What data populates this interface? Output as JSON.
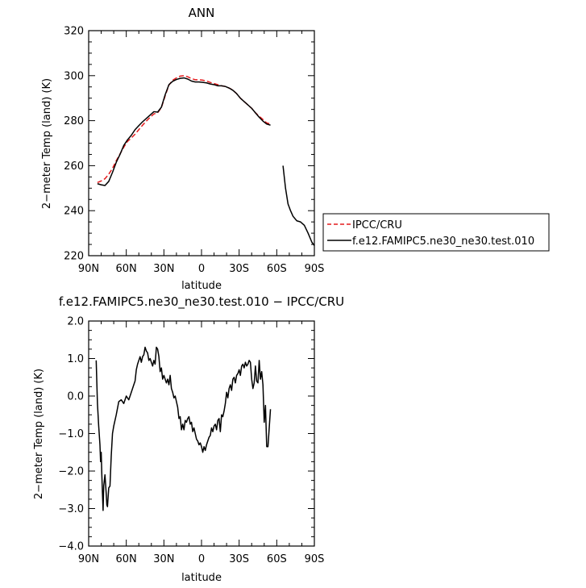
{
  "chart_data": [
    {
      "type": "line",
      "title": "ANN",
      "xlabel": "latitude",
      "ylabel": "2−meter Temp (land) (K)",
      "xlim": [
        90,
        -90
      ],
      "ylim": [
        220,
        320
      ],
      "x_ticks": [
        90,
        60,
        30,
        0,
        -30,
        -60,
        -90
      ],
      "x_tick_labels": [
        "90N",
        "60N",
        "30N",
        "0",
        "30S",
        "60S",
        "90S"
      ],
      "y_ticks": [
        220,
        240,
        260,
        280,
        300,
        320
      ],
      "y_tick_labels": [
        "220",
        "240",
        "260",
        "280",
        "300",
        "320"
      ],
      "legend": {
        "placement": "outside-right",
        "entries": [
          "IPCC/CRU",
          "f.e12.FAMIPC5.ne30_ne30.test.010"
        ]
      },
      "series": [
        {
          "name": "IPCC/CRU",
          "color": "#e41a1c",
          "dash": true,
          "x": [
            83,
            80,
            77,
            74,
            71,
            68,
            65,
            62,
            59,
            56,
            53,
            50,
            47,
            44,
            41,
            38,
            35,
            32,
            29,
            26,
            23,
            20,
            17,
            14,
            11,
            8,
            5,
            2,
            -1,
            -4,
            -7,
            -10,
            -13,
            -16,
            -19,
            -22,
            -25,
            -28,
            -31,
            -34,
            -37,
            -40,
            -43,
            -46,
            -49,
            -52,
            -55
          ],
          "y": [
            252.5,
            253.2,
            254.2,
            256.2,
            258.8,
            262.2,
            265.2,
            268.2,
            270.8,
            272.3,
            274,
            276,
            278,
            279.8,
            281.5,
            283,
            283.5,
            285.8,
            291,
            295.8,
            298,
            299,
            299.8,
            300,
            299.5,
            298.7,
            298.2,
            298.2,
            298,
            297.6,
            297,
            296.5,
            296,
            295.5,
            295.2,
            294.5,
            293.6,
            292,
            290,
            288.5,
            287,
            285.5,
            283.5,
            282,
            280.5,
            279,
            278.5
          ]
        },
        {
          "name": "f.e12.FAMIPC5.ne30_ne30.test.010",
          "color": "#000000",
          "dash": false,
          "x": [
            83,
            80,
            77,
            74,
            71,
            68,
            65,
            62,
            59,
            56,
            53,
            50,
            47,
            44,
            41,
            38,
            35,
            32,
            29,
            26,
            23,
            20,
            17,
            14,
            11,
            8,
            5,
            2,
            -1,
            -4,
            -7,
            -10,
            -13,
            -16,
            -19,
            -22,
            -25,
            -28,
            -31,
            -34,
            -37,
            -40,
            -43,
            -46,
            -49,
            -52,
            -55,
            null,
            -65,
            -67,
            -69,
            -71,
            -73,
            -76,
            -79,
            -82,
            -85,
            -88,
            -90
          ],
          "y": [
            252,
            251.5,
            251.2,
            253,
            257,
            261.5,
            265,
            269,
            271.5,
            273.5,
            276,
            277.8,
            279.5,
            281,
            282.5,
            284,
            283.8,
            286,
            291.5,
            296,
            297.5,
            298.3,
            298.8,
            299,
            298.5,
            297.6,
            297.2,
            297.2,
            297,
            296.8,
            296.3,
            296,
            295.5,
            295.5,
            295.2,
            294.5,
            293.5,
            292,
            290,
            288.5,
            287,
            285.5,
            283.5,
            281.5,
            279.8,
            278.5,
            278,
            null,
            260,
            250,
            243,
            240,
            237.5,
            235.5,
            235,
            233.5,
            230,
            226,
            224.5
          ]
        }
      ]
    },
    {
      "type": "line",
      "title": "f.e12.FAMIPC5.ne30_ne30.test.010 − IPCC/CRU",
      "xlabel": "latitude",
      "ylabel": "2−meter Temp (land) (K)",
      "xlim": [
        90,
        -90
      ],
      "ylim": [
        -4,
        2
      ],
      "x_ticks": [
        90,
        60,
        30,
        0,
        -30,
        -60,
        -90
      ],
      "x_tick_labels": [
        "90N",
        "60N",
        "30N",
        "0",
        "30S",
        "60S",
        "90S"
      ],
      "y_ticks": [
        -4,
        -3,
        -2,
        -1,
        0,
        1,
        2
      ],
      "y_tick_labels": [
        "−4.0",
        "−3.0",
        "−2.0",
        "−1.0",
        "0.0",
        "1.0",
        "2.0"
      ],
      "series": [
        {
          "color": "#000000",
          "dash": false,
          "x": [
            84,
            83,
            82,
            81,
            80.5,
            80,
            79.5,
            79,
            78.5,
            78,
            77,
            76,
            75.5,
            75,
            74,
            73,
            72,
            71,
            70,
            68,
            66,
            64,
            62,
            60,
            58,
            56,
            54,
            53,
            52,
            51,
            50,
            49,
            48,
            47,
            46,
            45,
            44,
            43,
            42,
            41,
            40,
            39,
            38,
            37,
            36,
            35,
            34,
            33,
            32,
            31,
            30,
            29,
            28,
            27,
            26,
            25,
            24,
            23,
            22,
            21,
            20,
            19,
            18,
            17,
            16,
            15,
            14,
            13,
            12,
            11,
            10,
            9,
            8,
            7,
            6,
            5,
            4,
            3,
            2,
            1,
            0,
            -1,
            -2,
            -3,
            -4,
            -5,
            -6,
            -7,
            -8,
            -9,
            -10,
            -11,
            -12,
            -13,
            -14,
            -15,
            -16,
            -17,
            -18,
            -19,
            -20,
            -21,
            -22,
            -23,
            -24,
            -25,
            -26,
            -27,
            -28,
            -29,
            -30,
            -31,
            -32,
            -33,
            -34,
            -35,
            -36,
            -37,
            -38,
            -39,
            -40,
            -41,
            -42,
            -43,
            -44,
            -45,
            -46,
            -47,
            -48,
            -49,
            -50,
            -51,
            -52,
            -53,
            -54,
            -55
          ],
          "y": [
            0.95,
            -0.2,
            -0.8,
            -1.3,
            -1.75,
            -1.5,
            -2.1,
            -2.6,
            -3.05,
            -2.4,
            -2.1,
            -2.6,
            -2.9,
            -2.95,
            -2.45,
            -2.4,
            -1.6,
            -1.0,
            -0.8,
            -0.5,
            -0.15,
            -0.1,
            -0.2,
            0.0,
            -0.1,
            0.1,
            0.3,
            0.4,
            0.7,
            0.85,
            0.95,
            1.05,
            0.9,
            1.05,
            1.1,
            1.3,
            1.2,
            1.15,
            0.95,
            1.0,
            0.9,
            0.8,
            0.95,
            0.85,
            1.3,
            1.25,
            1.05,
            0.65,
            0.75,
            0.45,
            0.55,
            0.45,
            0.35,
            0.45,
            0.3,
            0.55,
            0.2,
            0.1,
            -0.05,
            0.0,
            -0.15,
            -0.3,
            -0.6,
            -0.55,
            -0.9,
            -0.75,
            -0.9,
            -0.65,
            -0.7,
            -0.6,
            -0.55,
            -0.75,
            -0.7,
            -0.95,
            -0.85,
            -1.0,
            -1.15,
            -1.2,
            -1.3,
            -1.25,
            -1.35,
            -1.5,
            -1.35,
            -1.45,
            -1.3,
            -1.2,
            -1.1,
            -1.05,
            -0.85,
            -0.95,
            -0.8,
            -0.75,
            -0.9,
            -0.65,
            -0.6,
            -0.95,
            -0.5,
            -0.55,
            -0.4,
            -0.2,
            0.1,
            -0.05,
            0.2,
            0.3,
            0.15,
            0.45,
            0.5,
            0.35,
            0.55,
            0.6,
            0.7,
            0.55,
            0.8,
            0.85,
            0.75,
            0.9,
            0.8,
            0.85,
            0.95,
            0.9,
            0.45,
            0.2,
            0.35,
            0.8,
            0.4,
            0.35,
            0.95,
            0.45,
            0.65,
            0.3,
            -0.7,
            -0.25,
            -1.35,
            -1.35,
            -0.85,
            -0.35
          ]
        }
      ]
    }
  ]
}
